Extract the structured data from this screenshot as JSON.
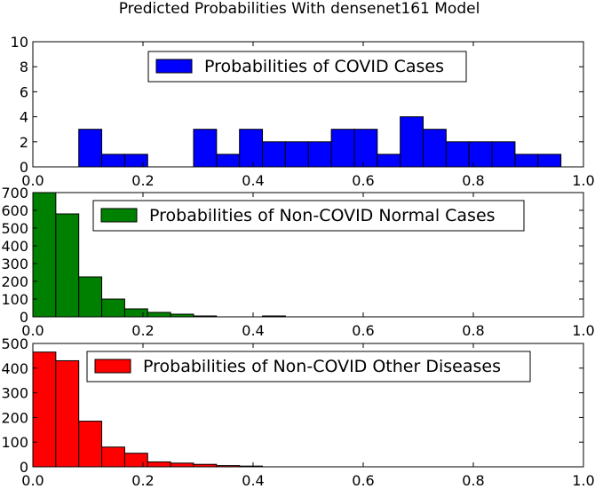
{
  "title": "Predicted Probabilities With densenet161 Model",
  "chart_data": [
    {
      "type": "bar",
      "series": [
        {
          "name": "Probabilities of COVID Cases",
          "color": "#0000ff"
        }
      ],
      "legend_position": "upper-center",
      "xlim": [
        0.0,
        1.0
      ],
      "ylim": [
        0,
        10
      ],
      "xticks": [
        "0.0",
        "0.2",
        "0.4",
        "0.6",
        "0.8",
        "1.0"
      ],
      "yticks": [
        "0",
        "2",
        "4",
        "6",
        "8",
        "10"
      ],
      "bin_start": 0.0,
      "bin_width": 0.0417,
      "values": [
        0,
        0,
        3,
        1,
        1,
        0,
        0,
        3,
        1,
        3,
        2,
        2,
        2,
        3,
        3,
        1,
        4,
        3,
        2,
        2,
        2,
        1,
        1
      ]
    },
    {
      "type": "bar",
      "series": [
        {
          "name": "Probabilities of Non-COVID Normal Cases",
          "color": "#008000"
        }
      ],
      "legend_position": "upper-center",
      "xlim": [
        0.0,
        1.0
      ],
      "ylim": [
        0,
        700
      ],
      "xticks": [
        "0.0",
        "0.2",
        "0.4",
        "0.6",
        "0.8",
        "1.0"
      ],
      "yticks": [
        "0",
        "100",
        "200",
        "300",
        "400",
        "500",
        "600",
        "700"
      ],
      "bin_start": 0.0,
      "bin_width": 0.0417,
      "values": [
        700,
        580,
        225,
        100,
        45,
        25,
        15,
        5,
        0,
        0,
        5
      ]
    },
    {
      "type": "bar",
      "series": [
        {
          "name": "Probabilities of Non-COVID Other Diseases",
          "color": "#ff0000"
        }
      ],
      "legend_position": "upper-center",
      "xlim": [
        0.0,
        1.0
      ],
      "ylim": [
        0,
        500
      ],
      "xticks": [
        "0.0",
        "0.2",
        "0.4",
        "0.6",
        "0.8",
        "1.0"
      ],
      "yticks": [
        "0",
        "100",
        "200",
        "300",
        "400",
        "500"
      ],
      "bin_start": 0.0,
      "bin_width": 0.0417,
      "values": [
        465,
        430,
        185,
        80,
        55,
        20,
        15,
        10,
        5,
        3
      ]
    }
  ]
}
